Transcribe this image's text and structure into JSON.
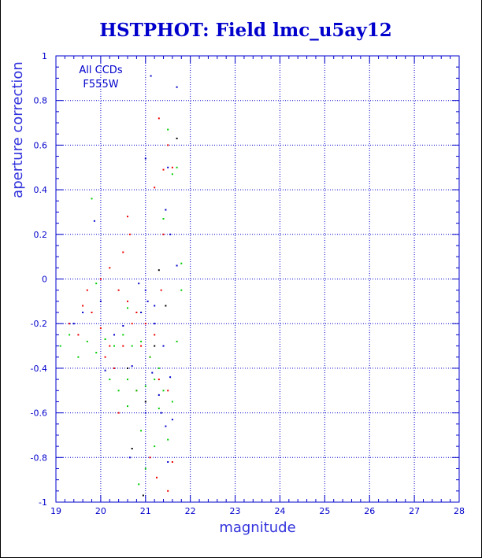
{
  "chart_data": {
    "type": "scatter",
    "title": "HSTPHOT: Field lmc_u5ay12",
    "xlabel": "magnitude",
    "ylabel": "aperture correction",
    "xlim": [
      19,
      28
    ],
    "ylim": [
      -1,
      1
    ],
    "xticks": [
      "19",
      "20",
      "21",
      "22",
      "23",
      "24",
      "25",
      "26",
      "27",
      "28"
    ],
    "yticks": [
      "-1",
      "-0.8",
      "-0.6",
      "-0.4",
      "-0.2",
      "0",
      "0.2",
      "0.4",
      "0.6",
      "0.8",
      "1"
    ],
    "grid": true,
    "annotations": [
      "All CCDs",
      "F555W"
    ],
    "colors": {
      "axis": "#0000cc",
      "grid": "#0000cc",
      "text": "#0000cc",
      "series": [
        "#0000cc",
        "#ee0000",
        "#00cc00",
        "#000000"
      ]
    },
    "series": [
      {
        "color": "#0000cc",
        "points": [
          [
            19.86,
            0.26
          ],
          [
            21.0,
            0.54
          ],
          [
            21.12,
            0.91
          ],
          [
            21.7,
            0.86
          ],
          [
            21.45,
            0.31
          ],
          [
            21.55,
            0.2
          ],
          [
            21.4,
            -0.3
          ],
          [
            21.3,
            -0.52
          ],
          [
            21.45,
            -0.66
          ],
          [
            21.6,
            -0.63
          ],
          [
            21.0,
            -0.6
          ],
          [
            20.9,
            -0.15
          ],
          [
            21.2,
            -0.2
          ],
          [
            20.3,
            -0.25
          ],
          [
            20.1,
            -0.41
          ],
          [
            21.05,
            -0.1
          ],
          [
            19.4,
            -0.2
          ],
          [
            19.6,
            -0.15
          ],
          [
            20.0,
            -0.1
          ],
          [
            20.7,
            -0.39
          ],
          [
            21.0,
            -0.05
          ],
          [
            21.5,
            -0.82
          ],
          [
            21.7,
            0.06
          ],
          [
            21.55,
            -0.44
          ],
          [
            21.2,
            -0.12
          ],
          [
            20.5,
            -0.21
          ],
          [
            20.85,
            -0.02
          ],
          [
            21.15,
            -0.42
          ],
          [
            21.35,
            -0.6
          ],
          [
            20.65,
            -0.8
          ],
          [
            21.5,
            0.5
          ]
        ]
      },
      {
        "color": "#ee0000",
        "points": [
          [
            21.3,
            0.72
          ],
          [
            21.4,
            0.49
          ],
          [
            21.5,
            0.6
          ],
          [
            21.6,
            0.5
          ],
          [
            21.2,
            0.41
          ],
          [
            21.4,
            0.2
          ],
          [
            20.6,
            0.28
          ],
          [
            20.65,
            0.2
          ],
          [
            20.5,
            0.12
          ],
          [
            19.6,
            -0.12
          ],
          [
            19.8,
            -0.15
          ],
          [
            20.0,
            -0.22
          ],
          [
            20.2,
            -0.3
          ],
          [
            20.4,
            -0.05
          ],
          [
            20.6,
            -0.1
          ],
          [
            20.8,
            -0.15
          ],
          [
            21.0,
            -0.2
          ],
          [
            21.2,
            -0.25
          ],
          [
            19.3,
            -0.2
          ],
          [
            19.5,
            -0.25
          ],
          [
            20.1,
            -0.35
          ],
          [
            20.3,
            -0.4
          ],
          [
            20.5,
            -0.3
          ],
          [
            20.7,
            -0.2
          ],
          [
            20.9,
            -0.3
          ],
          [
            21.1,
            -0.35
          ],
          [
            21.3,
            -0.45
          ],
          [
            21.5,
            -0.5
          ],
          [
            20.0,
            0.0
          ],
          [
            20.2,
            0.05
          ],
          [
            19.7,
            -0.05
          ],
          [
            21.6,
            -0.82
          ],
          [
            21.25,
            -0.89
          ],
          [
            21.5,
            -0.95
          ],
          [
            21.1,
            -0.8
          ],
          [
            20.4,
            -0.6
          ],
          [
            21.35,
            -0.05
          ],
          [
            20.8,
            -0.5
          ]
        ]
      },
      {
        "color": "#00cc00",
        "points": [
          [
            19.8,
            0.36
          ],
          [
            21.5,
            0.67
          ],
          [
            21.6,
            0.47
          ],
          [
            21.7,
            0.5
          ],
          [
            21.4,
            0.27
          ],
          [
            21.8,
            0.07
          ],
          [
            19.1,
            -0.3
          ],
          [
            19.3,
            -0.25
          ],
          [
            19.5,
            -0.35
          ],
          [
            19.7,
            -0.28
          ],
          [
            19.9,
            -0.33
          ],
          [
            20.1,
            -0.27
          ],
          [
            20.3,
            -0.3
          ],
          [
            20.5,
            -0.25
          ],
          [
            20.7,
            -0.3
          ],
          [
            20.9,
            -0.28
          ],
          [
            21.1,
            -0.35
          ],
          [
            21.3,
            -0.4
          ],
          [
            20.2,
            -0.45
          ],
          [
            20.4,
            -0.5
          ],
          [
            20.6,
            -0.45
          ],
          [
            20.8,
            -0.5
          ],
          [
            21.0,
            -0.48
          ],
          [
            21.2,
            -0.45
          ],
          [
            21.4,
            -0.5
          ],
          [
            20.6,
            -0.57
          ],
          [
            20.9,
            -0.68
          ],
          [
            21.0,
            -0.85
          ],
          [
            21.2,
            -0.75
          ],
          [
            21.3,
            -0.58
          ],
          [
            21.6,
            -0.55
          ],
          [
            21.5,
            -0.72
          ],
          [
            21.7,
            -0.28
          ],
          [
            21.8,
            -0.05
          ],
          [
            19.9,
            -0.02
          ],
          [
            20.6,
            -0.13
          ],
          [
            20.85,
            -0.92
          ]
        ]
      },
      {
        "color": "#000000",
        "points": [
          [
            21.7,
            0.63
          ],
          [
            21.3,
            0.04
          ],
          [
            20.95,
            -0.97
          ],
          [
            20.7,
            -0.76
          ],
          [
            21.0,
            -0.55
          ],
          [
            21.45,
            -0.12
          ],
          [
            20.6,
            -0.4
          ],
          [
            21.2,
            -0.3
          ]
        ]
      }
    ]
  }
}
